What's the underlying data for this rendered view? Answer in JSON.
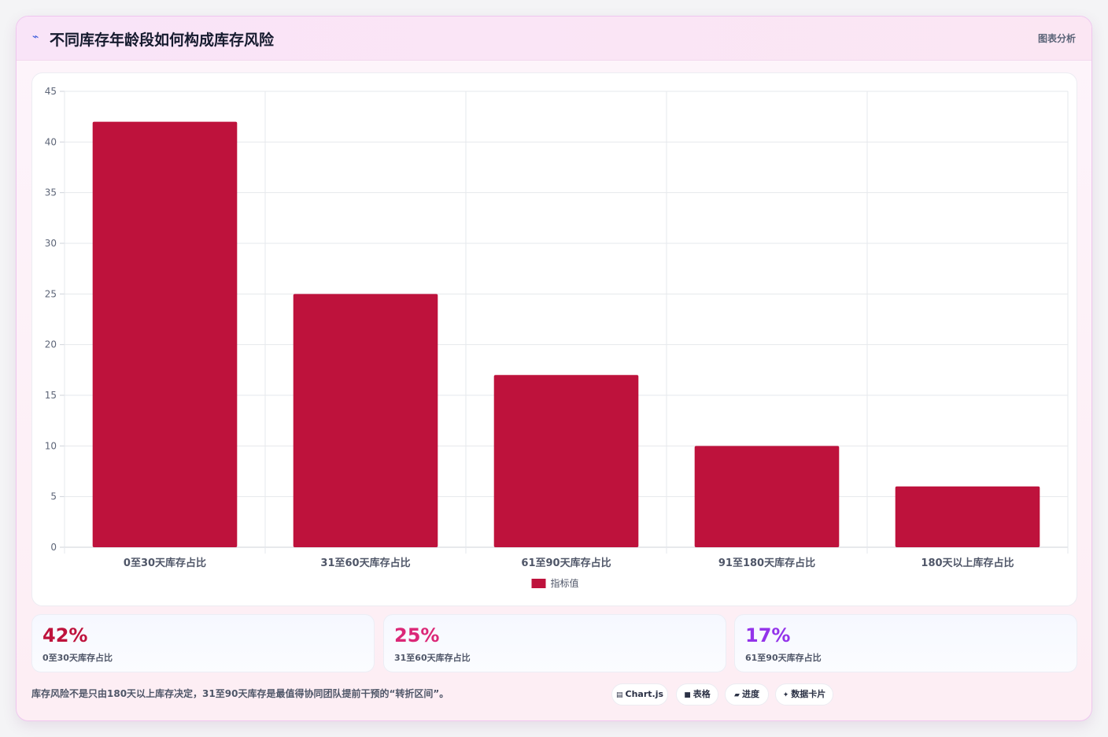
{
  "header": {
    "icon": "chart-line-icon",
    "title": "不同库存年龄段如何构成库存风险",
    "link": "图表分析"
  },
  "chart_data": {
    "type": "bar",
    "categories": [
      "0至30天库存占比",
      "31至60天库存占比",
      "61至90天库存占比",
      "91至180天库存占比",
      "180天以上库存占比"
    ],
    "series": [
      {
        "name": "指标值",
        "values": [
          42,
          25,
          17,
          10,
          6
        ]
      }
    ],
    "ylim": [
      0,
      45
    ],
    "yticks": [
      0,
      5,
      10,
      15,
      20,
      25,
      30,
      35,
      40,
      45
    ],
    "grid": true,
    "legend": "bottom",
    "bar_color": "#be123c"
  },
  "stats": [
    {
      "value": "42%",
      "label": "0至30天库存占比",
      "color": "#be123c"
    },
    {
      "value": "25%",
      "label": "31至60天库存占比",
      "color": "#db2777"
    },
    {
      "value": "17%",
      "label": "61至90天库存占比",
      "color": "#9333ea"
    }
  ],
  "note": "库存风险不是只由180天以上库存决定，31至90天库存是最值得协同团队提前干预的“转折区间”。",
  "chips": [
    {
      "icon": "▤",
      "label": "Chart.js"
    },
    {
      "icon": "■",
      "label": "表格"
    },
    {
      "icon": "▰",
      "label": "进度"
    },
    {
      "icon": "✦",
      "label": "数据卡片"
    }
  ]
}
